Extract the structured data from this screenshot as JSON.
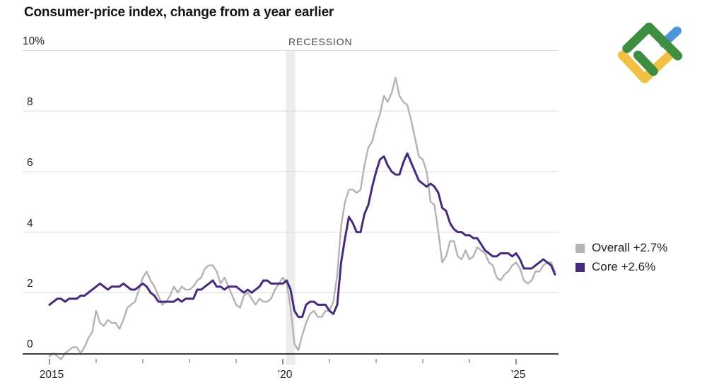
{
  "header": {
    "title": "Consumer-price index, change from a year earlier"
  },
  "recession": {
    "label": "RECESSION"
  },
  "legend": {
    "items": [
      {
        "label": "Overall +2.7%",
        "color": "#b3b3b3"
      },
      {
        "label": "Core +2.6%",
        "color": "#472a7d"
      }
    ]
  },
  "colors": {
    "grid": "#dcdcdc",
    "zero_axis": "#3c3c3c",
    "recession_band": "#ececec",
    "tick": "#8a8a8a",
    "overall_line": "#b3b3b3",
    "core_line": "#472a7d"
  },
  "logo": {
    "name": "litefinance-logo",
    "green": "#3e8e41",
    "yellow": "#f0c143",
    "blue": "#4a96d8"
  },
  "chart_data": {
    "type": "line",
    "title": "Consumer-price index, change from a year earlier",
    "xlabel": "",
    "ylabel": "",
    "ylim": [
      -0.5,
      10
    ],
    "grid": "horizontal",
    "legend_position": "right",
    "x_start": "2015-01",
    "x_frequency": "monthly",
    "y_ticks": [
      {
        "value": 10,
        "label": "10%"
      },
      {
        "value": 8,
        "label": "8"
      },
      {
        "value": 6,
        "label": "6"
      },
      {
        "value": 4,
        "label": "4"
      },
      {
        "value": 2,
        "label": "2"
      },
      {
        "value": 0,
        "label": "0"
      }
    ],
    "x_tick_years": [
      2015,
      2016,
      2017,
      2018,
      2019,
      2020,
      2021,
      2022,
      2023,
      2024,
      2025
    ],
    "x_tick_labels": [
      "2015",
      "",
      "",
      "",
      "",
      "’20",
      "",
      "",
      "",
      "",
      "’25"
    ],
    "recession_band": {
      "label": "RECESSION",
      "start_month_index": 61,
      "end_month_index": 63
    },
    "series": [
      {
        "name": "Overall",
        "latest_label": "Overall +2.7%",
        "color": "#b3b3b3",
        "values": [
          -0.1,
          0.0,
          -0.1,
          -0.2,
          0.0,
          0.1,
          0.2,
          0.2,
          0.0,
          0.2,
          0.5,
          0.7,
          1.4,
          1.0,
          0.9,
          1.1,
          1.0,
          1.0,
          0.8,
          1.1,
          1.5,
          1.6,
          1.7,
          2.1,
          2.5,
          2.7,
          2.4,
          2.2,
          1.9,
          1.6,
          1.7,
          1.9,
          2.2,
          2.0,
          2.2,
          2.1,
          2.1,
          2.2,
          2.4,
          2.5,
          2.8,
          2.9,
          2.9,
          2.7,
          2.3,
          2.5,
          2.2,
          1.9,
          1.6,
          1.5,
          1.9,
          2.0,
          1.8,
          1.6,
          1.8,
          1.7,
          1.7,
          1.8,
          2.1,
          2.3,
          2.5,
          2.3,
          1.5,
          0.3,
          0.1,
          0.6,
          1.0,
          1.3,
          1.4,
          1.2,
          1.2,
          1.4,
          1.4,
          1.7,
          2.6,
          4.2,
          5.0,
          5.4,
          5.4,
          5.3,
          5.4,
          6.2,
          6.8,
          7.0,
          7.5,
          7.9,
          8.5,
          8.3,
          8.6,
          9.1,
          8.5,
          8.3,
          8.2,
          7.7,
          7.1,
          6.5,
          6.4,
          6.0,
          5.0,
          4.9,
          4.0,
          3.0,
          3.2,
          3.7,
          3.7,
          3.2,
          3.1,
          3.4,
          3.1,
          3.2,
          3.5,
          3.4,
          3.3,
          3.0,
          2.9,
          2.5,
          2.4,
          2.6,
          2.7,
          2.9,
          3.0,
          2.8,
          2.4,
          2.3,
          2.4,
          2.7,
          2.7,
          2.9,
          3.0,
          3.0,
          2.7
        ]
      },
      {
        "name": "Core",
        "latest_label": "Core +2.6%",
        "color": "#472a7d",
        "values": [
          1.6,
          1.7,
          1.8,
          1.8,
          1.7,
          1.8,
          1.8,
          1.8,
          1.9,
          1.9,
          2.0,
          2.1,
          2.2,
          2.3,
          2.2,
          2.1,
          2.2,
          2.2,
          2.2,
          2.3,
          2.2,
          2.1,
          2.1,
          2.2,
          2.3,
          2.2,
          2.0,
          1.9,
          1.7,
          1.7,
          1.7,
          1.7,
          1.7,
          1.8,
          1.7,
          1.8,
          1.8,
          1.8,
          2.1,
          2.1,
          2.2,
          2.3,
          2.4,
          2.2,
          2.2,
          2.1,
          2.2,
          2.2,
          2.2,
          2.1,
          2.0,
          2.1,
          2.0,
          2.1,
          2.2,
          2.4,
          2.4,
          2.3,
          2.3,
          2.3,
          2.3,
          2.4,
          2.1,
          1.4,
          1.2,
          1.2,
          1.6,
          1.7,
          1.7,
          1.6,
          1.6,
          1.6,
          1.4,
          1.3,
          1.6,
          3.0,
          3.8,
          4.5,
          4.3,
          4.0,
          4.0,
          4.6,
          4.9,
          5.5,
          6.0,
          6.4,
          6.5,
          6.2,
          6.0,
          5.9,
          5.9,
          6.3,
          6.6,
          6.3,
          6.0,
          5.7,
          5.6,
          5.5,
          5.6,
          5.5,
          5.3,
          4.8,
          4.7,
          4.3,
          4.1,
          4.0,
          4.0,
          3.9,
          3.9,
          3.8,
          3.8,
          3.6,
          3.4,
          3.3,
          3.2,
          3.2,
          3.3,
          3.3,
          3.3,
          3.2,
          3.3,
          3.1,
          2.8,
          2.8,
          2.8,
          2.9,
          3.0,
          3.1,
          3.0,
          2.9,
          2.6
        ]
      }
    ]
  }
}
